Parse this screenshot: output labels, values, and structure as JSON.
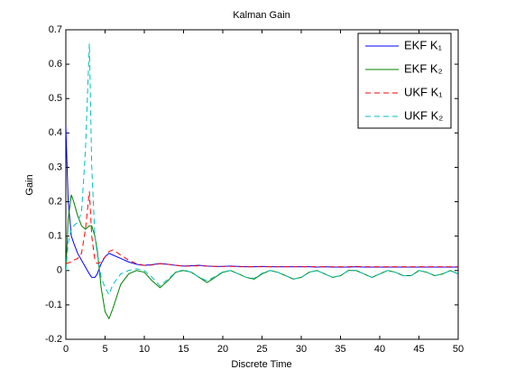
{
  "chart_data": {
    "type": "line",
    "title": "Kalman Gain",
    "xlabel": "Discrete Time",
    "ylabel": "Gain",
    "xlim": [
      0,
      50
    ],
    "ylim": [
      -0.2,
      0.7
    ],
    "xticks": [
      0,
      5,
      10,
      15,
      20,
      25,
      30,
      35,
      40,
      45,
      50
    ],
    "yticks": [
      -0.2,
      -0.1,
      0,
      0.1,
      0.2,
      0.3,
      0.4,
      0.5,
      0.6,
      0.7
    ],
    "grid": false,
    "legend": "upper right",
    "x": [
      0,
      0.3,
      0.7,
      1,
      1.5,
      2,
      2.5,
      3,
      3.3,
      3.7,
      4,
      4.5,
      5,
      5.5,
      6,
      7,
      8,
      9,
      10,
      11,
      12,
      13,
      14,
      15,
      16,
      17,
      18,
      19,
      20,
      21,
      22,
      23,
      24,
      25,
      26,
      27,
      28,
      29,
      30,
      31,
      32,
      33,
      34,
      35,
      36,
      37,
      38,
      39,
      40,
      41,
      42,
      43,
      44,
      45,
      46,
      47,
      48,
      49,
      50
    ],
    "series": [
      {
        "name": "EKF K₁",
        "color": "#0000ff",
        "dash": "solid",
        "values": [
          0.42,
          0.2,
          0.1,
          0.08,
          0.05,
          0.03,
          0.01,
          -0.01,
          -0.02,
          -0.02,
          -0.01,
          0.02,
          0.04,
          0.05,
          0.045,
          0.035,
          0.025,
          0.018,
          0.015,
          0.017,
          0.02,
          0.018,
          0.015,
          0.013,
          0.014,
          0.015,
          0.013,
          0.012,
          0.012,
          0.013,
          0.012,
          0.011,
          0.011,
          0.012,
          0.011,
          0.011,
          0.011,
          0.011,
          0.011,
          0.011,
          0.01,
          0.011,
          0.01,
          0.01,
          0.01,
          0.011,
          0.01,
          0.01,
          0.01,
          0.01,
          0.01,
          0.01,
          0.01,
          0.01,
          0.01,
          0.01,
          0.01,
          0.01,
          0.01
        ]
      },
      {
        "name": "EKF K₂",
        "color": "#008000",
        "dash": "solid",
        "values": [
          0,
          0.15,
          0.22,
          0.2,
          0.16,
          0.13,
          0.12,
          0.13,
          0.13,
          0.1,
          0.06,
          -0.05,
          -0.12,
          -0.14,
          -0.11,
          -0.04,
          -0.01,
          0,
          -0.005,
          -0.03,
          -0.05,
          -0.03,
          -0.005,
          0,
          -0.005,
          -0.02,
          -0.035,
          -0.02,
          -0.005,
          0,
          -0.01,
          -0.02,
          -0.025,
          -0.01,
          0,
          -0.005,
          -0.015,
          -0.025,
          -0.02,
          -0.005,
          0,
          -0.01,
          -0.02,
          -0.015,
          0,
          0,
          -0.01,
          -0.02,
          -0.01,
          0,
          -0.005,
          -0.015,
          -0.015,
          0,
          -0.005,
          -0.015,
          -0.01,
          0,
          -0.01
        ]
      },
      {
        "name": "UKF K₁",
        "color": "#ff0000",
        "dash": "dashed",
        "values": [
          0.02,
          0.022,
          0.025,
          0.03,
          0.035,
          0.05,
          0.12,
          0.23,
          0.1,
          0.03,
          0.02,
          0.025,
          0.04,
          0.055,
          0.06,
          0.045,
          0.03,
          0.02,
          0.015,
          0.016,
          0.02,
          0.018,
          0.015,
          0.013,
          0.013,
          0.014,
          0.013,
          0.012,
          0.012,
          0.012,
          0.011,
          0.011,
          0.011,
          0.011,
          0.011,
          0.011,
          0.011,
          0.011,
          0.011,
          0.011,
          0.011,
          0.011,
          0.011,
          0.011,
          0.011,
          0.012,
          0.011,
          0.011,
          0.011,
          0.011,
          0.011,
          0.011,
          0.011,
          0.011,
          0.011,
          0.011,
          0.011,
          0.011,
          0.011
        ]
      },
      {
        "name": "UKF K₂",
        "color": "#00bfbf",
        "dash": "dashed",
        "values": [
          0,
          0.08,
          0.12,
          0.13,
          0.14,
          0.17,
          0.35,
          0.66,
          0.3,
          0.1,
          0.05,
          -0.02,
          -0.05,
          -0.07,
          -0.04,
          -0.01,
          0,
          0.005,
          0,
          -0.02,
          -0.045,
          -0.025,
          -0.005,
          0.002,
          -0.005,
          -0.02,
          -0.03,
          -0.018,
          -0.004,
          0,
          -0.01,
          -0.02,
          -0.023,
          -0.008,
          0,
          -0.005,
          -0.015,
          -0.025,
          -0.02,
          -0.005,
          0,
          -0.01,
          -0.02,
          -0.015,
          0,
          0,
          -0.01,
          -0.02,
          -0.01,
          0,
          -0.005,
          -0.015,
          -0.015,
          0,
          -0.005,
          -0.015,
          -0.01,
          0,
          -0.01
        ]
      }
    ]
  }
}
